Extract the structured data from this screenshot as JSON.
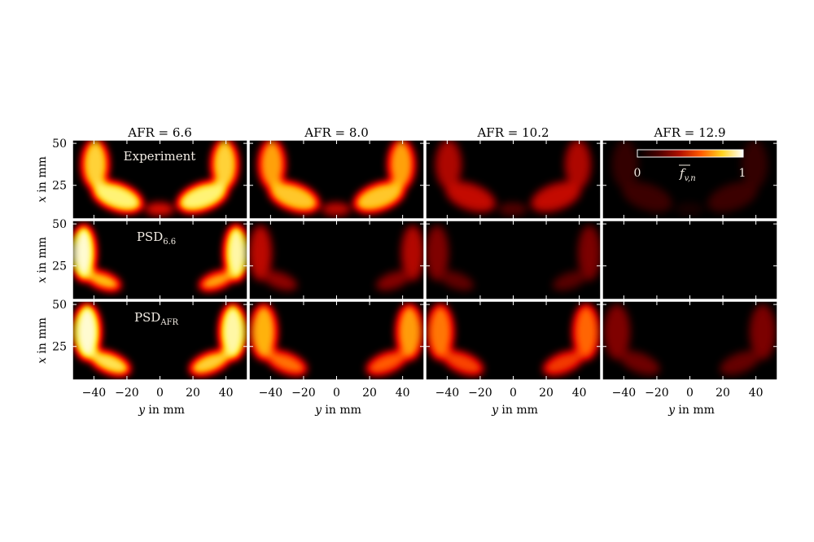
{
  "chart_data": {
    "type": "heatmap",
    "columns": [
      {
        "title": "AFR = 6.6",
        "afr": 6.6,
        "scale": 1.0
      },
      {
        "title": "AFR = 8.0",
        "afr": 8.0,
        "scale": 0.82
      },
      {
        "title": "AFR = 10.2",
        "afr": 10.2,
        "scale": 0.52
      },
      {
        "title": "AFR = 12.9",
        "afr": 12.9,
        "scale": 0.2
      }
    ],
    "rows": [
      {
        "label_main": "Experiment",
        "label_sub": "",
        "intensity": [
          1.0,
          0.85,
          0.35,
          0.1
        ]
      },
      {
        "label_main": "PSD",
        "label_sub": "6.6",
        "intensity": [
          1.0,
          0.3,
          0.2,
          0.0
        ]
      },
      {
        "label_main": "PSD",
        "label_sub": "AFR",
        "intensity": [
          1.0,
          0.7,
          0.6,
          0.2
        ]
      }
    ],
    "xlabel_var": "y",
    "xlabel_unit": " in mm",
    "ylabel_var": "x",
    "ylabel_unit": " in mm",
    "x_ticks": [
      -40,
      -20,
      0,
      20,
      40
    ],
    "x_tick_labels": [
      "−40",
      "−20",
      "0",
      "20",
      "40"
    ],
    "xlim": [
      -53,
      53
    ],
    "y_ticks": [
      25,
      50
    ],
    "y_tick_labels": [
      "25",
      "50"
    ],
    "ylim": [
      5,
      52
    ],
    "colorbar": {
      "min_label": "0",
      "max_label": "1",
      "label_var": "f",
      "label_sub": "v,n",
      "colors": [
        "#000000",
        "#4a0000",
        "#b01000",
        "#ff5a00",
        "#ffd21e",
        "#ffffff"
      ]
    }
  }
}
